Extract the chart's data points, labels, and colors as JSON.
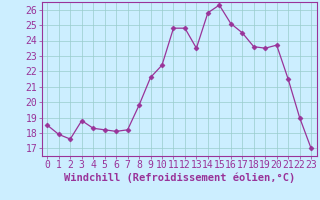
{
  "x": [
    0,
    1,
    2,
    3,
    4,
    5,
    6,
    7,
    8,
    9,
    10,
    11,
    12,
    13,
    14,
    15,
    16,
    17,
    18,
    19,
    20,
    21,
    22,
    23
  ],
  "y": [
    18.5,
    17.9,
    17.6,
    18.8,
    18.3,
    18.2,
    18.1,
    18.2,
    19.8,
    21.6,
    22.4,
    24.8,
    24.8,
    23.5,
    25.8,
    26.3,
    25.1,
    24.5,
    23.6,
    23.5,
    23.7,
    21.5,
    19.0,
    17.0
  ],
  "line_color": "#993399",
  "marker": "D",
  "marker_size": 2.5,
  "bg_color": "#cceeff",
  "grid_color": "#99cccc",
  "xlabel": "Windchill (Refroidissement éolien,°C)",
  "xlabel_fontsize": 7.5,
  "tick_fontsize": 7,
  "ylim": [
    16.5,
    26.5
  ],
  "yticks": [
    17,
    18,
    19,
    20,
    21,
    22,
    23,
    24,
    25,
    26
  ],
  "xlim": [
    -0.5,
    23.5
  ],
  "xticks": [
    0,
    1,
    2,
    3,
    4,
    5,
    6,
    7,
    8,
    9,
    10,
    11,
    12,
    13,
    14,
    15,
    16,
    17,
    18,
    19,
    20,
    21,
    22,
    23
  ]
}
